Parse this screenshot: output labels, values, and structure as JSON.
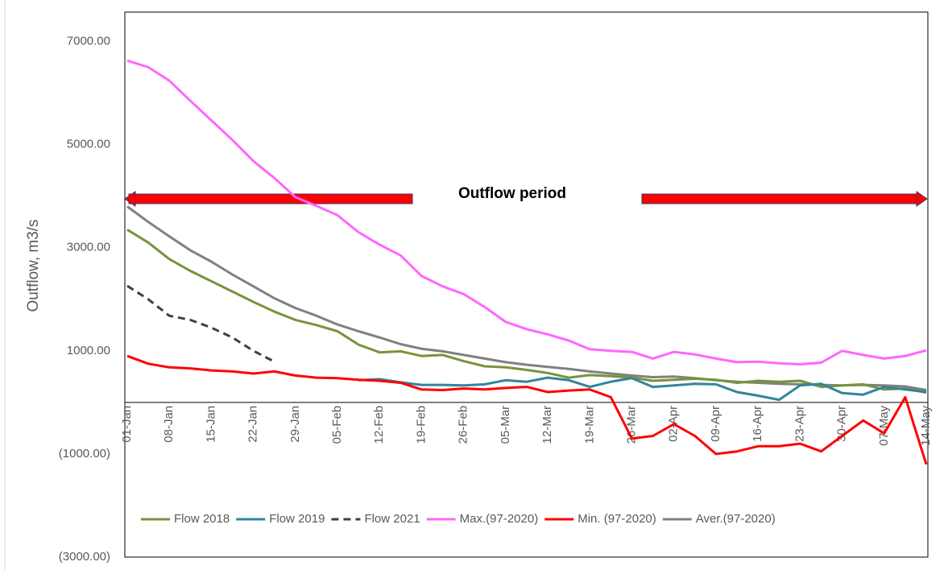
{
  "chart_data": {
    "type": "line",
    "y_label": "Outflow, m3/s",
    "annotation": "Outflow period",
    "categories": [
      "01-Jan",
      null,
      "08-Jan",
      null,
      "15-Jan",
      null,
      "22-Jan",
      null,
      "29-Jan",
      null,
      "05-Feb",
      null,
      "12-Feb",
      null,
      "19-Feb",
      null,
      "26-Feb",
      null,
      "05-Mar",
      null,
      "12-Mar",
      null,
      "19-Mar",
      null,
      "26-Mar",
      null,
      "02-Apr",
      null,
      "09-Apr",
      null,
      "16-Apr",
      null,
      "23-Apr",
      null,
      "30-Apr",
      null,
      "07-May",
      null,
      "14-May"
    ],
    "ylim": [
      -3000,
      7570
    ],
    "yticks": [
      {
        "value": 7000,
        "label": "7000.00"
      },
      {
        "value": 5000,
        "label": "5000.00"
      },
      {
        "value": 3000,
        "label": "3000.00"
      },
      {
        "value": 1000,
        "label": "1000.00"
      },
      {
        "value": -1000,
        "label": "(1000.00)"
      },
      {
        "value": -3000,
        "label": "(3000.00)"
      }
    ],
    "negative_tick_color": "#ff0000",
    "grid": false,
    "legend": "bottom",
    "series": [
      {
        "name": "Flow 2018",
        "color": "#77933c",
        "dash": false,
        "values": [
          3350,
          3100,
          2780,
          2550,
          2350,
          2150,
          1950,
          1760,
          1600,
          1500,
          1380,
          1120,
          970,
          990,
          900,
          920,
          800,
          700,
          680,
          630,
          570,
          480,
          530,
          510,
          480,
          420,
          440,
          460,
          440,
          380,
          420,
          400,
          420,
          300,
          330,
          350,
          250,
          270,
          190
        ]
      },
      {
        "name": "Flow 2019",
        "color": "#31859c",
        "dash": false,
        "values": [
          null,
          null,
          null,
          null,
          null,
          null,
          null,
          null,
          null,
          null,
          null,
          430,
          450,
          390,
          340,
          340,
          330,
          350,
          430,
          400,
          480,
          430,
          300,
          400,
          470,
          300,
          330,
          360,
          350,
          200,
          130,
          50,
          330,
          360,
          180,
          150,
          300,
          250,
          200
        ]
      },
      {
        "name": "Flow 2021",
        "color": "#404040",
        "dash": true,
        "values": [
          2260,
          2000,
          1680,
          1600,
          1450,
          1260,
          1000,
          790,
          null,
          null,
          null,
          null,
          null,
          null,
          null,
          null,
          null,
          null,
          null,
          null,
          null,
          null,
          null,
          null,
          null,
          null,
          null,
          null,
          null,
          null,
          null,
          null,
          null,
          null,
          null,
          null,
          null,
          null,
          null
        ]
      },
      {
        "name": "Max.(97-2020)",
        "color": "#ff66ff",
        "dash": false,
        "values": [
          6630,
          6500,
          6240,
          5850,
          5470,
          5090,
          4680,
          4350,
          3980,
          3810,
          3630,
          3300,
          3060,
          2850,
          2450,
          2250,
          2100,
          1850,
          1560,
          1420,
          1320,
          1200,
          1030,
          1000,
          980,
          850,
          980,
          930,
          850,
          780,
          790,
          760,
          740,
          770,
          1000,
          920,
          850,
          900,
          1010
        ]
      },
      {
        "name": "Min. (97-2020)",
        "color": "#ff0000",
        "dash": false,
        "values": [
          900,
          750,
          680,
          660,
          620,
          600,
          560,
          600,
          520,
          480,
          470,
          440,
          420,
          380,
          250,
          240,
          270,
          250,
          280,
          300,
          200,
          230,
          250,
          100,
          -700,
          -650,
          -420,
          -650,
          -1000,
          -950,
          -850,
          -850,
          -800,
          -950,
          -650,
          -350,
          -600,
          100,
          -1200
        ]
      },
      {
        "name": "Aver.(97-2020)",
        "color": "#808080",
        "dash": false,
        "values": [
          3800,
          3500,
          3220,
          2950,
          2730,
          2480,
          2250,
          2020,
          1830,
          1680,
          1510,
          1380,
          1260,
          1130,
          1040,
          990,
          920,
          850,
          780,
          730,
          690,
          650,
          600,
          560,
          520,
          490,
          500,
          470,
          430,
          400,
          380,
          360,
          350,
          340,
          330,
          340,
          330,
          310,
          240
        ]
      }
    ]
  }
}
